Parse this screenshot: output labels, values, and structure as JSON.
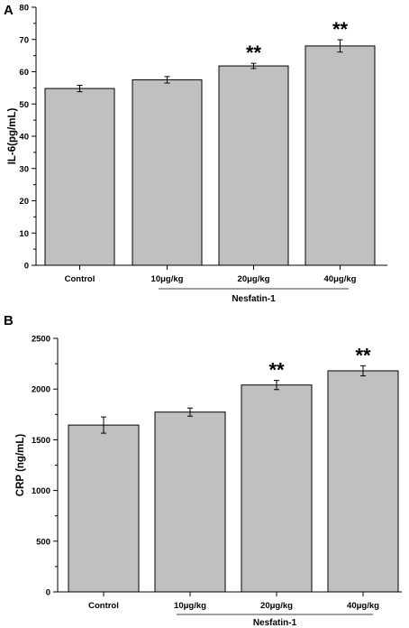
{
  "chart_data": [
    {
      "type": "bar",
      "panel_label": "A",
      "categories": [
        "Control",
        "10μg/kg",
        "20μg/kg",
        "40μg/kg"
      ],
      "values": [
        54.8,
        57.5,
        61.8,
        68.0
      ],
      "errors": [
        1.0,
        1.0,
        0.8,
        1.9
      ],
      "annotations": [
        "",
        "",
        "**",
        "**"
      ],
      "ylabel": "IL-6(pg/mL)",
      "xlabel": "",
      "group_label": "Nesfatin-1",
      "ylim": [
        0,
        80
      ],
      "yticks": [
        0,
        10,
        20,
        30,
        40,
        50,
        60,
        70,
        80
      ],
      "grid": false,
      "bar_color": "#c0c0c0"
    },
    {
      "type": "bar",
      "panel_label": "B",
      "categories": [
        "Control",
        "10μg/kg",
        "20μg/kg",
        "40μg/kg"
      ],
      "values": [
        1645,
        1773,
        2040,
        2180
      ],
      "errors": [
        80,
        40,
        45,
        50
      ],
      "annotations": [
        "",
        "",
        "**",
        "**"
      ],
      "ylabel": "CRP (ng/mL)",
      "xlabel": "",
      "group_label": "Nesfatin-1",
      "ylim": [
        0,
        2500
      ],
      "yticks": [
        0,
        500,
        1000,
        1500,
        2000,
        2500
      ],
      "grid": false,
      "bar_color": "#c0c0c0"
    }
  ]
}
